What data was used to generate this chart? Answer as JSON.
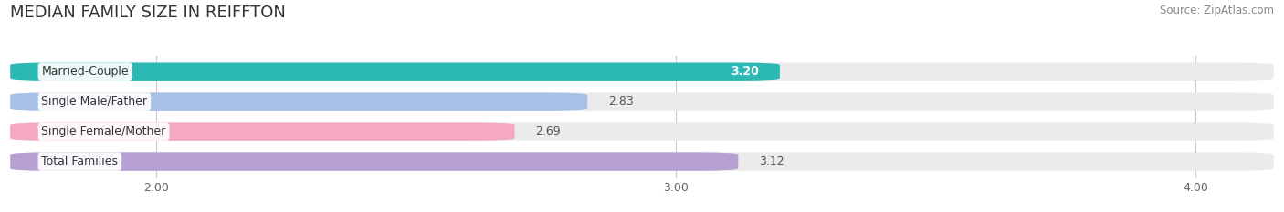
{
  "title": "MEDIAN FAMILY SIZE IN REIFFTON",
  "source": "Source: ZipAtlas.com",
  "categories": [
    "Married-Couple",
    "Single Male/Father",
    "Single Female/Mother",
    "Total Families"
  ],
  "values": [
    3.2,
    2.83,
    2.69,
    3.12
  ],
  "bar_colors": [
    "#2cb9b5",
    "#a8c0e8",
    "#f4a8c4",
    "#b8a0d4"
  ],
  "xmin": 1.72,
  "xmax": 4.15,
  "xticks": [
    2.0,
    3.0,
    4.0
  ],
  "bar_height": 0.62,
  "background_color": "#ffffff",
  "bar_bg_color": "#ebebeb",
  "title_fontsize": 13,
  "label_fontsize": 9,
  "value_fontsize": 9,
  "source_fontsize": 8.5,
  "value_label_color_inside": "#ffffff",
  "value_label_color_outside": "#555555"
}
